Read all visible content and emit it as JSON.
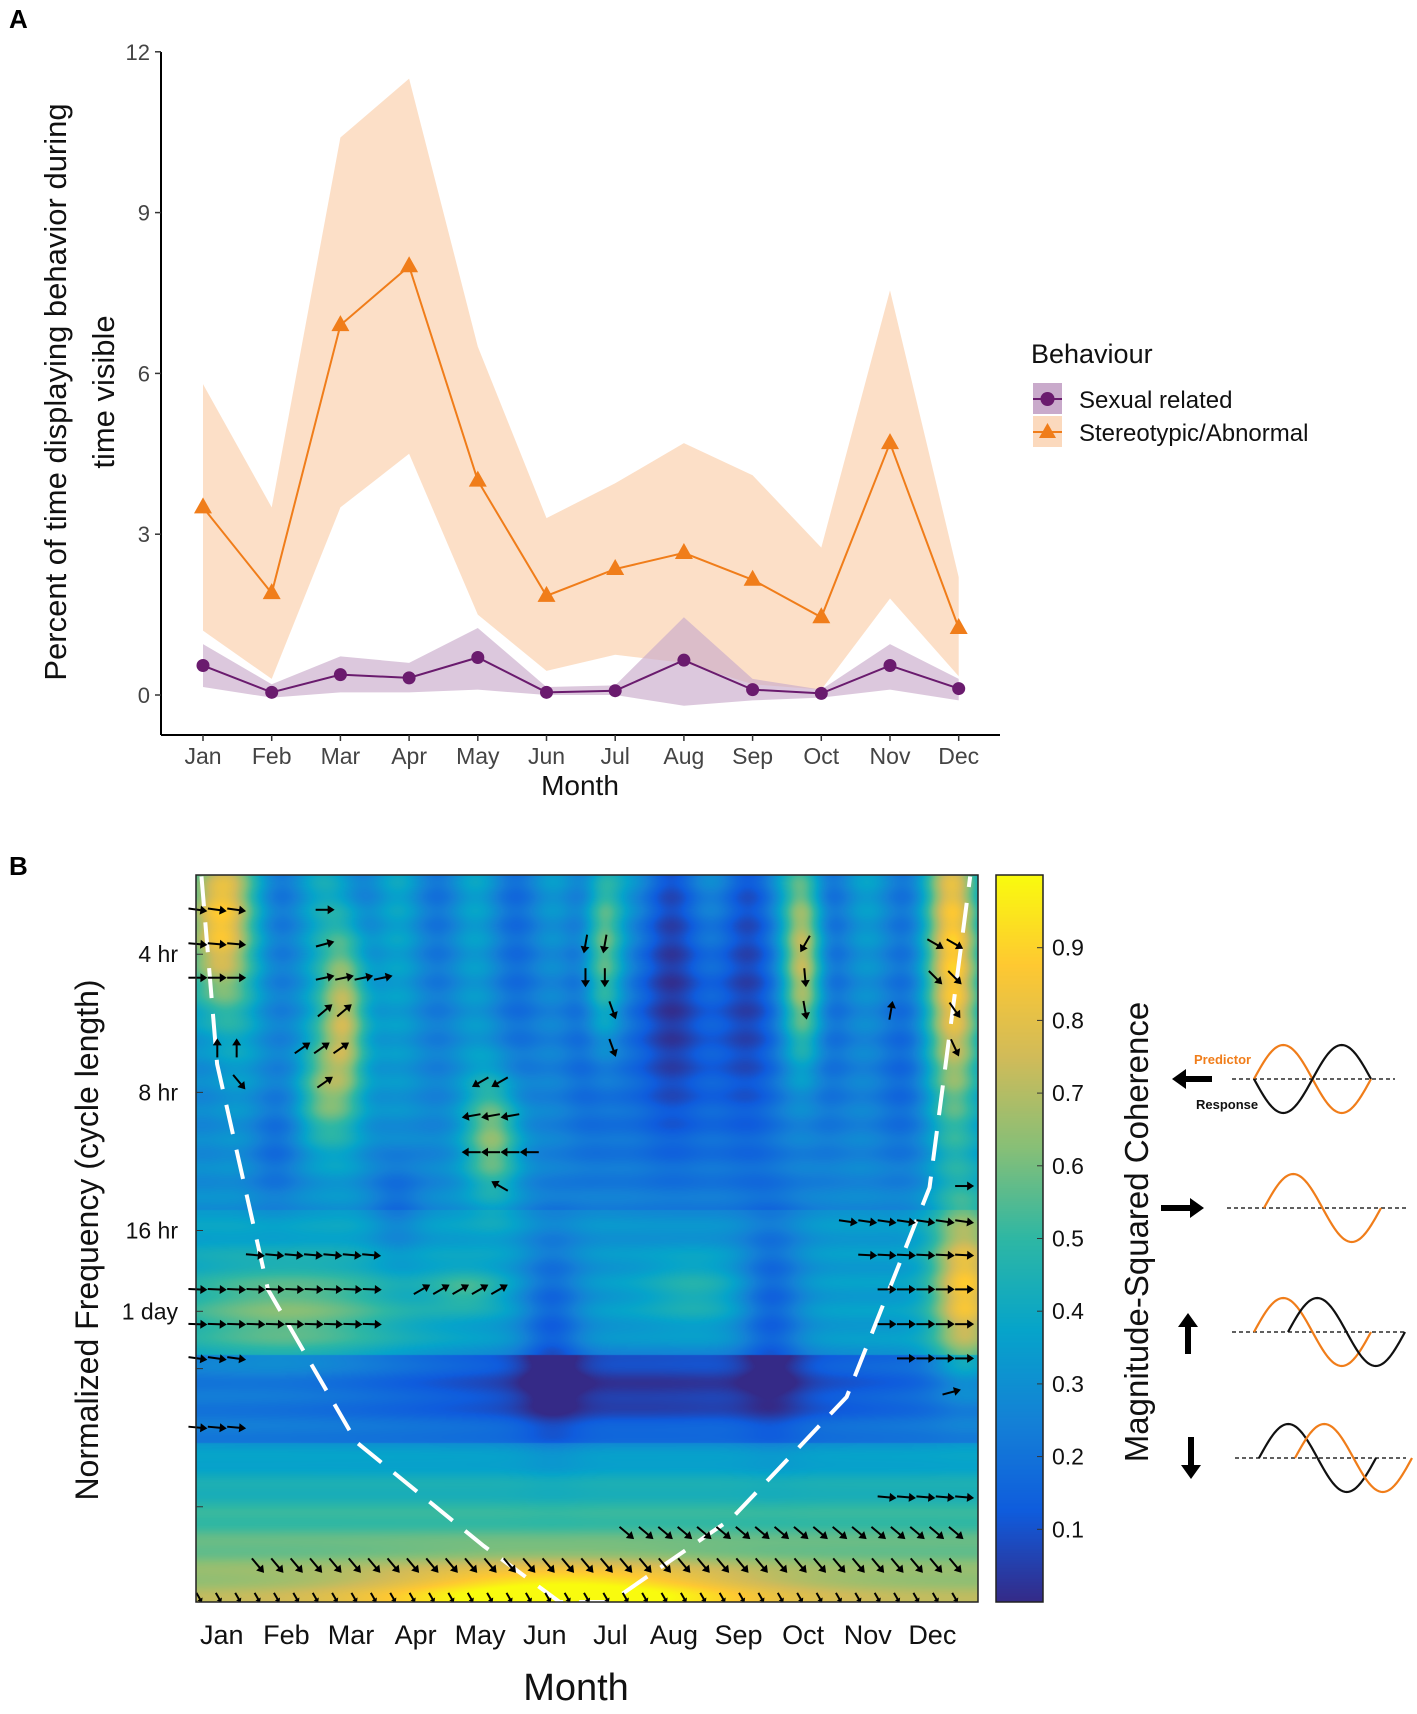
{
  "panel_labels": {
    "a": "A",
    "b": "B"
  },
  "chart_data": [
    {
      "type": "line",
      "title": "",
      "xlabel": "Month",
      "ylabel_lines": [
        "Percent of time displaying behavior during",
        "time visible"
      ],
      "categories": [
        "Jan",
        "Feb",
        "Mar",
        "Apr",
        "May",
        "Jun",
        "Jul",
        "Aug",
        "Sep",
        "Oct",
        "Nov",
        "Dec"
      ],
      "ylim": [
        -0.9,
        12
      ],
      "yticks": [
        "0",
        "3",
        "6",
        "9",
        "12"
      ],
      "ytick_values": [
        0,
        3,
        6,
        9,
        12
      ],
      "legend": {
        "title": "Behaviour",
        "placement": "right"
      },
      "series": [
        {
          "name": "Sexual related",
          "color": "#6a1b6e",
          "ribbon_color": "#c9aacb",
          "marker": "circle",
          "values": [
            0.55,
            0.05,
            0.38,
            0.32,
            0.7,
            0.05,
            0.08,
            0.65,
            0.1,
            0.03,
            0.55,
            0.12
          ],
          "lower": [
            0.15,
            -0.05,
            0.05,
            0.05,
            0.1,
            0.0,
            0.0,
            -0.2,
            -0.1,
            -0.05,
            0.1,
            -0.1
          ],
          "upper": [
            0.95,
            0.2,
            0.72,
            0.6,
            1.25,
            0.15,
            0.18,
            1.45,
            0.3,
            0.1,
            0.95,
            0.3
          ]
        },
        {
          "name": "Stereotypic/Abnormal",
          "color": "#f07d1a",
          "ribbon_color": "#fbd9bd",
          "marker": "triangle",
          "values": [
            3.5,
            1.9,
            6.9,
            8.0,
            4.0,
            1.85,
            2.35,
            2.65,
            2.15,
            1.45,
            4.7,
            1.25
          ],
          "lower": [
            1.2,
            0.3,
            3.5,
            4.5,
            1.5,
            0.45,
            0.75,
            0.6,
            0.2,
            0.1,
            1.8,
            0.35
          ],
          "upper": [
            5.8,
            3.5,
            10.4,
            11.5,
            6.5,
            3.3,
            3.95,
            4.7,
            4.1,
            2.75,
            7.55,
            2.2
          ]
        }
      ]
    },
    {
      "type": "heatmap",
      "title": "",
      "xlabel": "Month",
      "ylabel": "Normalized Frequency  (cycle length)",
      "x_ticks": [
        "Jan",
        "Feb",
        "Mar",
        "Apr",
        "May",
        "Jun",
        "Jul",
        "Aug",
        "Sep",
        "Oct",
        "Nov",
        "Dec"
      ],
      "y_ticks": [
        {
          "label": "4 hr",
          "period_hr": 4
        },
        {
          "label": "8 hr",
          "period_hr": 8
        },
        {
          "label": "16 hr",
          "period_hr": 16
        },
        {
          "label": "1 day",
          "period_hr": 24
        }
      ],
      "y_minor_ticks_hr": [
        32,
        64
      ],
      "colorbar": {
        "label": "Magnitude-Squared Coherence",
        "range": [
          0,
          1
        ],
        "ticks": [
          "0.1",
          "0.2",
          "0.3",
          "0.4",
          "0.5",
          "0.6",
          "0.7",
          "0.8",
          "0.9"
        ],
        "tick_values": [
          0.1,
          0.2,
          0.3,
          0.4,
          0.5,
          0.6,
          0.7,
          0.8,
          0.9
        ],
        "colormap": "parula"
      },
      "phase_arrows": [
        {
          "period_hr": 3.2,
          "month_from": -0.37,
          "month_to": 0.47,
          "angle": -8
        },
        {
          "period_hr": 3.2,
          "month_from": 1.6,
          "month_to": 1.6,
          "angle": 0
        },
        {
          "period_hr": 3.8,
          "month_from": -0.37,
          "month_to": 0.47,
          "angle": -5
        },
        {
          "period_hr": 3.8,
          "month_from": 1.6,
          "month_to": 1.6,
          "angle": 15
        },
        {
          "period_hr": 3.8,
          "month_from": 5.63,
          "month_to": 6.0,
          "angle": -100
        },
        {
          "period_hr": 3.8,
          "month_from": 9.03,
          "month_to": 9.03,
          "angle": -120
        },
        {
          "period_hr": 3.8,
          "month_from": 11.05,
          "month_to": 11.35,
          "angle": -30
        },
        {
          "period_hr": 4.5,
          "month_from": -0.37,
          "month_to": 0.47,
          "angle": 0
        },
        {
          "period_hr": 4.5,
          "month_from": 1.6,
          "month_to": 2.5,
          "angle": 12
        },
        {
          "period_hr": 4.5,
          "month_from": 5.63,
          "month_to": 6.0,
          "angle": -90
        },
        {
          "period_hr": 4.5,
          "month_from": 9.03,
          "month_to": 9.03,
          "angle": -85
        },
        {
          "period_hr": 4.5,
          "month_from": 11.05,
          "month_to": 11.35,
          "angle": -45
        },
        {
          "period_hr": 5.3,
          "month_from": 1.6,
          "month_to": 1.95,
          "angle": 40
        },
        {
          "period_hr": 5.3,
          "month_from": 6.05,
          "month_to": 6.05,
          "angle": -70
        },
        {
          "period_hr": 5.3,
          "month_from": 9.03,
          "month_to": 9.03,
          "angle": -80
        },
        {
          "period_hr": 5.3,
          "month_from": 10.36,
          "month_to": 10.36,
          "angle": 80
        },
        {
          "period_hr": 5.3,
          "month_from": 11.35,
          "month_to": 11.35,
          "angle": -55
        },
        {
          "period_hr": 6.4,
          "month_from": -0.07,
          "month_to": 0.27,
          "angle": 90
        },
        {
          "period_hr": 6.4,
          "month_from": 1.25,
          "month_to": 1.95,
          "angle": 35
        },
        {
          "period_hr": 6.4,
          "month_from": 6.05,
          "month_to": 6.05,
          "angle": -70
        },
        {
          "period_hr": 6.4,
          "month_from": 11.35,
          "month_to": 11.35,
          "angle": -65
        },
        {
          "period_hr": 7.6,
          "month_from": 0.27,
          "month_to": 0.27,
          "angle": -50
        },
        {
          "period_hr": 7.6,
          "month_from": 1.6,
          "month_to": 1.6,
          "angle": 35
        },
        {
          "period_hr": 7.6,
          "month_from": 4.0,
          "month_to": 4.3,
          "angle": -150
        },
        {
          "period_hr": 9.0,
          "month_from": 3.86,
          "month_to": 4.5,
          "angle": -170
        },
        {
          "period_hr": 10.8,
          "month_from": 3.86,
          "month_to": 4.85,
          "angle": 180
        },
        {
          "period_hr": 12.8,
          "month_from": 4.3,
          "month_to": 4.3,
          "angle": 150
        },
        {
          "period_hr": 12.8,
          "month_from": 11.5,
          "month_to": 11.5,
          "angle": 0
        },
        {
          "period_hr": 15.3,
          "month_from": 9.7,
          "month_to": 11.5,
          "angle": -8
        },
        {
          "period_hr": 18.1,
          "month_from": 0.52,
          "month_to": 2.5,
          "angle": -5
        },
        {
          "period_hr": 18.1,
          "month_from": 10.0,
          "month_to": 11.5,
          "angle": -3
        },
        {
          "period_hr": 21.5,
          "month_from": -0.37,
          "month_to": 2.5,
          "angle": -2
        },
        {
          "period_hr": 21.5,
          "month_from": 3.1,
          "month_to": 4.45,
          "angle": 30
        },
        {
          "period_hr": 21.5,
          "month_from": 10.3,
          "month_to": 11.5,
          "angle": 0
        },
        {
          "period_hr": 25.6,
          "month_from": -0.37,
          "month_to": 2.5,
          "angle": -2
        },
        {
          "period_hr": 25.6,
          "month_from": 10.3,
          "month_to": 11.5,
          "angle": 0
        },
        {
          "period_hr": 30.4,
          "month_from": -0.37,
          "month_to": 0.47,
          "angle": -8
        },
        {
          "period_hr": 30.4,
          "month_from": 10.6,
          "month_to": 11.5,
          "angle": 0
        },
        {
          "period_hr": 36,
          "month_from": 11.3,
          "month_to": 11.3,
          "angle": 15
        },
        {
          "period_hr": 43,
          "month_from": -0.37,
          "month_to": 0.47,
          "angle": -5
        },
        {
          "period_hr": 61,
          "month_from": 10.3,
          "month_to": 11.5,
          "angle": -5
        },
        {
          "period_hr": 73,
          "month_from": 6.27,
          "month_to": 11.5,
          "angle": -40
        },
        {
          "period_hr": 86,
          "month_from": 0.56,
          "month_to": 11.5,
          "angle": -50
        },
        {
          "period_hr": 101,
          "month_from": -0.35,
          "month_to": 11.6,
          "angle": -60
        }
      ],
      "phase_legend": {
        "predictor_label": "Predictor",
        "response_label": "Response",
        "predictor_color": "#f07d1a",
        "response_color": "#111111",
        "rows": [
          {
            "arrow": "left"
          },
          {
            "arrow": "right"
          },
          {
            "arrow": "up"
          },
          {
            "arrow": "down"
          }
        ]
      }
    }
  ]
}
